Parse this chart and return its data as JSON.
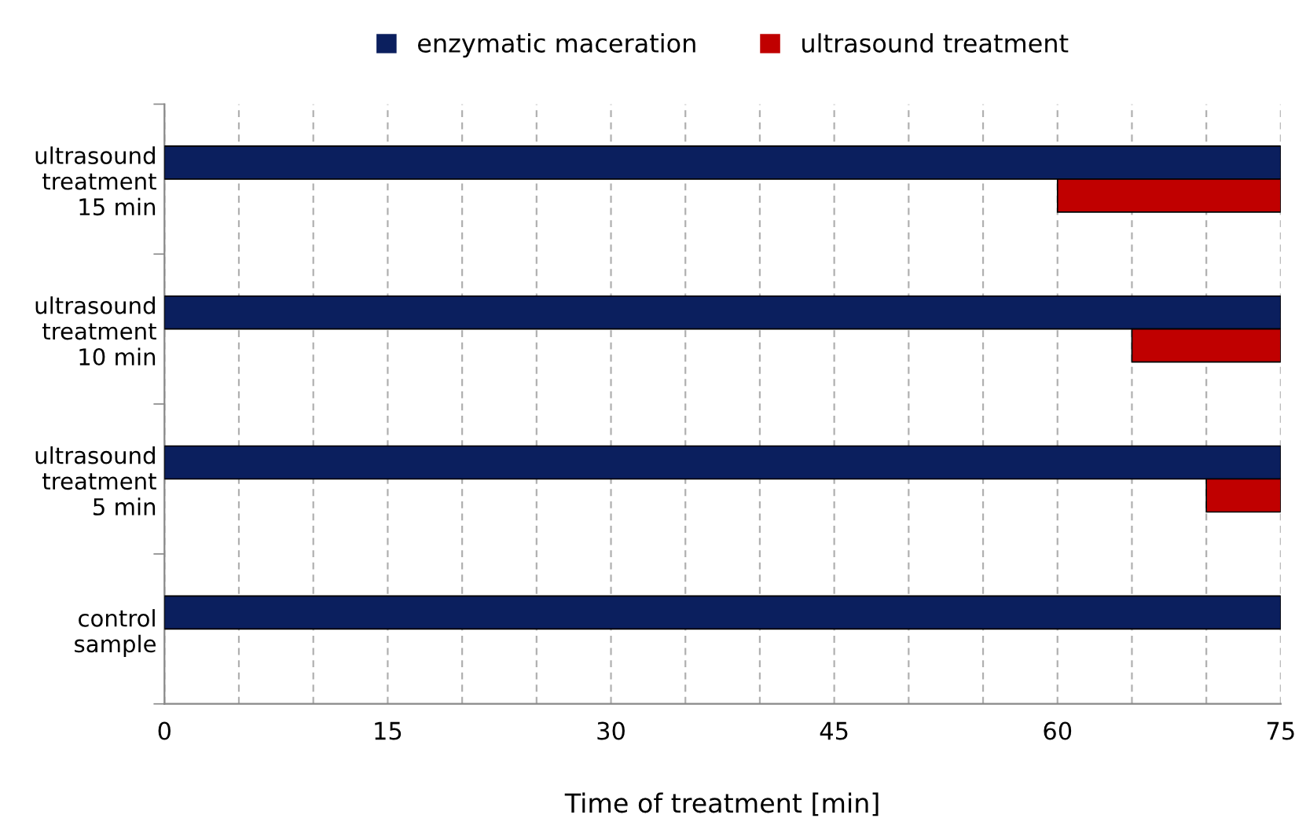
{
  "chart_data": {
    "type": "bar",
    "orientation": "horizontal",
    "xlabel": "Time of treatment [min]",
    "categories": [
      "ultrasound\ntreatment\n15 min",
      "ultrasound\ntreatment\n10 min",
      "ultrasound\ntreatment\n5 min",
      "control\nsample"
    ],
    "series": [
      {
        "name": "enzymatic maceration",
        "color": "#0b1f5e",
        "values": [
          75,
          75,
          75,
          75
        ],
        "base": [
          0,
          0,
          0,
          0
        ]
      },
      {
        "name": "ultrasound treatment",
        "color": "#c00000",
        "values": [
          15,
          10,
          5,
          null
        ],
        "base": [
          60,
          65,
          70,
          null
        ]
      }
    ],
    "xlim": [
      0,
      75
    ],
    "xticks": [
      0,
      {
        "value": 5,
        "label": null
      },
      {
        "value": 10,
        "label": null
      },
      15,
      {
        "value": 20,
        "label": null
      },
      {
        "value": 25,
        "label": null
      },
      30,
      {
        "value": 35,
        "label": null
      },
      {
        "value": 40,
        "label": null
      },
      45,
      {
        "value": 50,
        "label": null
      },
      {
        "value": 55,
        "label": null
      },
      60,
      {
        "value": 65,
        "label": null
      },
      {
        "value": 70,
        "label": null
      },
      75
    ],
    "grid": "x",
    "legend": "top"
  }
}
